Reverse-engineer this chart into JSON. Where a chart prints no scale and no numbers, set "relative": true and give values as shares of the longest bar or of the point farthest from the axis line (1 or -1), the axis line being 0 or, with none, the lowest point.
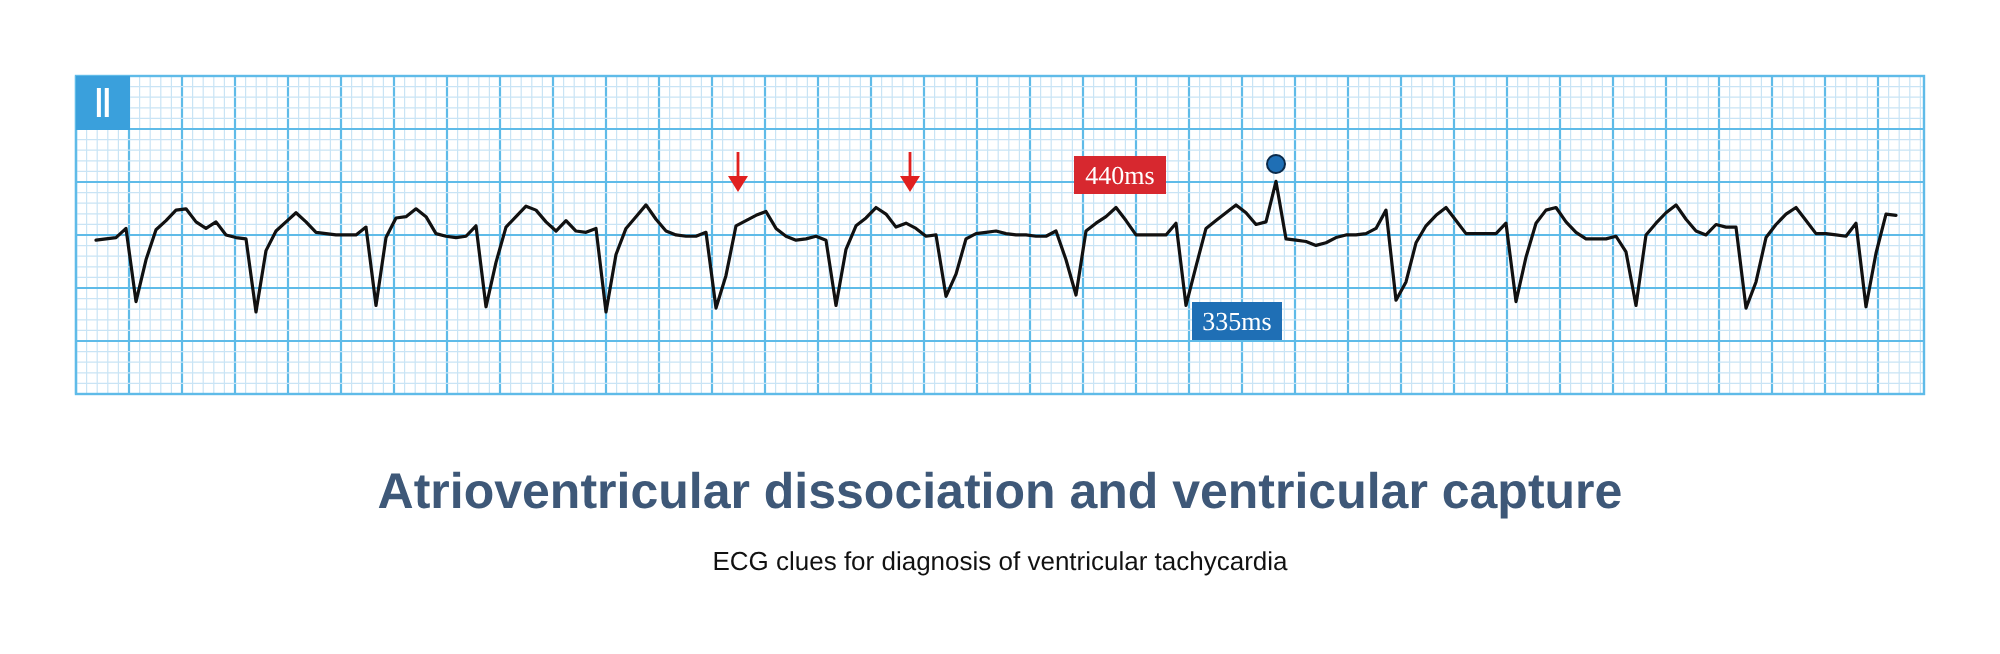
{
  "chart_data": {
    "type": "line",
    "relative": true,
    "title": "Atrioventricular dissociation and ventricular capture",
    "subtitle": "ECG clues for diagnosis of ventricular tachycardia",
    "annotations": [
      "Ⅱ",
      "440ms",
      "335ms"
    ],
    "grid": true,
    "categories": [
      null,
      null,
      null,
      null,
      null,
      null,
      null,
      null,
      null,
      null,
      null,
      null,
      null,
      null,
      null,
      null,
      null,
      null,
      null,
      null,
      null,
      null,
      null,
      null,
      null,
      null,
      null,
      null,
      null,
      null,
      null,
      null,
      null,
      null,
      null,
      null,
      null,
      null,
      null,
      null,
      null,
      null,
      null,
      null,
      null,
      null,
      null,
      null,
      null,
      null,
      null,
      null,
      null,
      null,
      null,
      null,
      null,
      null,
      null,
      null,
      null,
      null,
      null,
      null,
      null,
      null,
      null,
      null,
      null,
      null,
      null,
      null,
      null,
      null,
      null,
      null,
      null,
      null,
      null,
      null,
      null,
      null,
      null,
      null,
      null,
      null,
      null,
      null,
      null,
      null,
      null,
      null,
      null,
      null,
      null,
      null,
      null,
      null,
      null,
      null,
      null,
      null,
      null,
      null,
      null,
      null,
      null,
      null,
      null,
      null,
      null,
      null,
      null,
      null,
      null,
      null,
      null,
      null,
      null,
      null,
      null,
      null,
      null,
      null,
      null,
      null,
      null,
      null,
      null,
      null,
      null,
      null,
      null,
      null,
      null,
      null,
      null,
      null,
      null,
      null,
      null,
      null,
      null,
      null,
      null,
      null,
      null,
      null,
      null,
      null,
      null,
      null,
      null,
      null,
      null,
      null,
      null,
      null,
      null,
      null,
      null,
      null,
      null,
      null,
      null,
      null,
      null,
      null,
      null,
      null,
      null,
      null,
      null,
      null,
      null,
      null,
      null,
      null,
      null,
      null,
      null
    ],
    "series": [
      {
        "color": "#111111",
        "values": [
          0.55,
          0.56,
          0.57,
          0.64,
          0.08,
          0.4,
          0.63,
          0.7,
          0.78,
          0.79,
          0.69,
          0.64,
          0.69,
          0.59,
          0.57,
          0.56,
          0,
          0.47,
          0.62,
          0.69,
          0.76,
          0.69,
          0.61,
          0.6,
          0.59,
          0.59,
          0.59,
          0.65,
          0.05,
          0.57,
          0.72,
          0.73,
          0.79,
          0.73,
          0.6,
          0.58,
          0.57,
          0.58,
          0.66,
          0.04,
          0.38,
          0.65,
          0.73,
          0.81,
          0.78,
          0.69,
          0.62,
          0.7,
          0.62,
          0.61,
          0.64,
          0,
          0.44,
          0.64,
          0.73,
          0.82,
          0.71,
          0.62,
          0.59,
          0.58,
          0.58,
          0.61,
          0.03,
          0.28,
          0.66,
          0.7,
          0.74,
          0.77,
          0.64,
          0.58,
          0.55,
          0.56,
          0.58,
          0.55,
          0.05,
          0.48,
          0.66,
          0.72,
          0.8,
          0.75,
          0.65,
          0.68,
          0.64,
          0.58,
          0.59,
          0.12,
          0.29,
          0.56,
          0.6,
          0.61,
          0.62,
          0.6,
          0.59,
          0.59,
          0.58,
          0.58,
          0.62,
          0.4,
          0.13,
          0.62,
          0.68,
          0.73,
          0.8,
          0.7,
          0.59,
          0.59,
          0.59,
          0.59,
          0.68,
          0.05,
          0.35,
          0.64,
          0.7,
          0.76,
          0.82,
          0.76,
          0.67,
          0.69,
          1,
          0.56,
          0.55,
          0.54,
          0.51,
          0.53,
          0.57,
          0.59,
          0.59,
          0.6,
          0.64,
          0.78,
          0.09,
          0.23,
          0.53,
          0.66,
          0.74,
          0.8,
          0.7,
          0.6,
          0.6,
          0.6,
          0.6,
          0.68,
          0.08,
          0.42,
          0.68,
          0.78,
          0.8,
          0.69,
          0.61,
          0.56,
          0.56,
          0.56,
          0.58,
          0.46,
          0.05,
          0.59,
          0.68,
          0.76,
          0.82,
          0.71,
          0.62,
          0.59,
          0.67,
          0.65,
          0.65,
          0.03,
          0.23,
          0.57,
          0.67,
          0.75,
          0.8,
          0.7,
          0.6,
          0.6,
          0.59,
          0.58,
          0.68,
          0.04,
          0.45,
          0.75,
          0.74
        ]
      }
    ]
  }
}
